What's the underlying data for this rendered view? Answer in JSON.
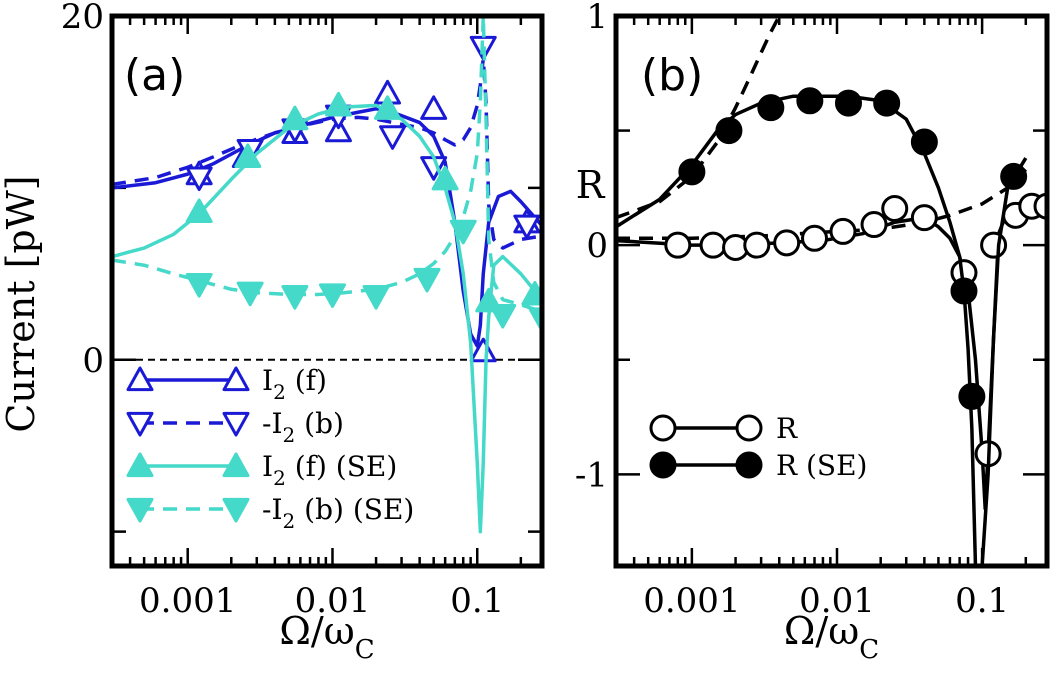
{
  "colors": {
    "blue": "#1a1ad6",
    "cyan": "#44d9c9",
    "black": "#000000"
  },
  "chart_data": [
    {
      "type": "line",
      "panel_label": "(a)",
      "xlabel": "Ω/ω",
      "xlabel_sub": "C",
      "ylabel": "Current [pW]",
      "xscale": "log",
      "xlim": [
        0.0003,
        0.28
      ],
      "ylim": [
        -12,
        20
      ],
      "x_ticks": [
        0.001,
        0.01,
        0.1
      ],
      "x_tick_labels": [
        "0.001",
        "0.01",
        "0.1"
      ],
      "y_ticks": [
        0,
        20
      ],
      "y_tick_labels": [
        "0",
        "20"
      ],
      "reference_line": 0,
      "legend_position": "bottom-left",
      "series": [
        {
          "name": "I₂ (f)",
          "color": "blue",
          "dash": "solid",
          "marker": "triangle-up",
          "fill": false,
          "line_x": [
            0.0003,
            0.0006,
            0.001,
            0.0015,
            0.0025,
            0.004,
            0.006,
            0.01,
            0.015,
            0.02,
            0.024,
            0.03,
            0.04,
            0.05,
            0.06,
            0.07,
            0.08,
            0.09,
            0.1,
            0.105,
            0.11,
            0.12,
            0.14,
            0.17,
            0.2,
            0.28
          ],
          "line_y": [
            10,
            10.3,
            10.8,
            11.4,
            12.4,
            13.2,
            13.6,
            14.1,
            14.4,
            14.6,
            14.5,
            14.2,
            13.8,
            13,
            11.5,
            8,
            4,
            1.5,
            0.8,
            2,
            5,
            8,
            9.5,
            9.8,
            9.2,
            7.8
          ],
          "marker_x": [
            0.0012,
            0.0025,
            0.0055,
            0.011,
            0.024,
            0.05,
            0.11,
            0.22
          ],
          "marker_y": [
            10.8,
            11.8,
            13.2,
            13.3,
            15.5,
            14.6,
            0.5,
            8
          ]
        },
        {
          "name": "-I₂ (b)",
          "color": "blue",
          "dash": "dashed",
          "marker": "triangle-down",
          "fill": false,
          "line_x": [
            0.0003,
            0.0006,
            0.001,
            0.0015,
            0.0025,
            0.004,
            0.006,
            0.01,
            0.015,
            0.02,
            0.03,
            0.04,
            0.05,
            0.06,
            0.07,
            0.08,
            0.09,
            0.1,
            0.105,
            0.11,
            0.115,
            0.12,
            0.13,
            0.15,
            0.2,
            0.28
          ],
          "line_y": [
            10.2,
            10.6,
            11.2,
            11.8,
            12.6,
            13.2,
            13.6,
            14,
            14.1,
            14,
            13.7,
            13.5,
            13.2,
            12.8,
            12.5,
            12.8,
            13.5,
            14.8,
            16,
            17.5,
            15,
            9,
            7,
            6.5,
            7,
            7.2
          ],
          "marker_x": [
            0.0012,
            0.0027,
            0.0055,
            0.011,
            0.026,
            0.05,
            0.11,
            0.22
          ],
          "marker_y": [
            10.6,
            12.2,
            13.4,
            14.2,
            13,
            11.2,
            18.2,
            7.8
          ]
        },
        {
          "name": "I₂ (f) (SE)",
          "color": "cyan",
          "dash": "solid",
          "marker": "triangle-up",
          "fill": true,
          "line_x": [
            0.0003,
            0.0005,
            0.0008,
            0.0012,
            0.002,
            0.003,
            0.005,
            0.008,
            0.012,
            0.02,
            0.03,
            0.04,
            0.05,
            0.06,
            0.07,
            0.08,
            0.09,
            0.1,
            0.105,
            0.11,
            0.115,
            0.12,
            0.13,
            0.15,
            0.2,
            0.28
          ],
          "line_y": [
            6,
            6.5,
            7.3,
            8.5,
            10.5,
            12,
            13.5,
            14.3,
            14.7,
            14.8,
            14,
            13,
            11.8,
            10,
            8,
            5,
            1,
            -6,
            -10,
            -6,
            0,
            2.5,
            5.5,
            6,
            5,
            3.5
          ],
          "marker_x": [
            0.0012,
            0.0026,
            0.0055,
            0.011,
            0.024,
            0.06,
            0.12,
            0.25
          ],
          "marker_y": [
            8.6,
            11.8,
            14,
            14.8,
            14.6,
            10.5,
            3.4,
            3.8
          ]
        },
        {
          "name": "-I₂ (b) (SE)",
          "color": "cyan",
          "dash": "dashed",
          "marker": "triangle-down",
          "fill": true,
          "line_x": [
            0.0003,
            0.0005,
            0.0008,
            0.0012,
            0.002,
            0.003,
            0.005,
            0.008,
            0.012,
            0.02,
            0.03,
            0.04,
            0.05,
            0.06,
            0.07,
            0.08,
            0.09,
            0.1,
            0.105,
            0.11,
            0.115,
            0.12,
            0.13,
            0.15,
            0.2,
            0.28
          ],
          "line_y": [
            5.8,
            5.5,
            5,
            4.6,
            4.1,
            3.9,
            3.8,
            3.8,
            3.9,
            4.1,
            4.5,
            5,
            5.6,
            6.3,
            7.2,
            8.3,
            9.8,
            12,
            15,
            20,
            14,
            7,
            4.5,
            3.5,
            3.2,
            2.8
          ],
          "marker_x": [
            0.0012,
            0.0027,
            0.0055,
            0.01,
            0.02,
            0.045,
            0.08,
            0.15,
            0.28
          ],
          "marker_y": [
            4.4,
            3.9,
            3.7,
            3.8,
            3.7,
            4.7,
            7.5,
            2.6,
            2.4
          ]
        }
      ]
    },
    {
      "type": "line",
      "panel_label": "(b)",
      "xlabel": "Ω/ω",
      "xlabel_sub": "C",
      "ylabel": "R",
      "xscale": "log",
      "xlim": [
        0.0003,
        0.28
      ],
      "ylim": [
        -1.4,
        1
      ],
      "x_ticks": [
        0.001,
        0.01,
        0.1
      ],
      "x_tick_labels": [
        "0.001",
        "0.01",
        "0.1"
      ],
      "y_ticks": [
        -1,
        0,
        1
      ],
      "y_tick_labels": [
        "-1",
        "0",
        "1"
      ],
      "legend_position": "bottom-left",
      "series": [
        {
          "name": "",
          "color": "black",
          "dash": "dashed",
          "marker": "none",
          "fill": false,
          "line_x": [
            0.0003,
            0.0006,
            0.001,
            0.0015,
            0.002,
            0.0025,
            0.003,
            0.0035,
            0.004
          ],
          "line_y": [
            0.12,
            0.19,
            0.3,
            0.45,
            0.6,
            0.73,
            0.84,
            0.93,
            1.0
          ]
        },
        {
          "name": "",
          "color": "black",
          "dash": "dashed",
          "marker": "none",
          "fill": false,
          "line_x": [
            0.0003,
            0.001,
            0.003,
            0.01,
            0.02,
            0.04,
            0.06,
            0.1,
            0.15,
            0.2
          ],
          "line_y": [
            0.03,
            0.03,
            0.04,
            0.06,
            0.07,
            0.1,
            0.13,
            0.18,
            0.25,
            0.33
          ]
        },
        {
          "name": "R",
          "color": "black",
          "dash": "solid",
          "marker": "circle",
          "fill": false,
          "line_x": [
            0.0003,
            0.001,
            0.002,
            0.004,
            0.008,
            0.015,
            0.025,
            0.04,
            0.05,
            0.06,
            0.07,
            0.08,
            0.09,
            0.1,
            0.105,
            0.11,
            0.12,
            0.13,
            0.15,
            0.2,
            0.28
          ],
          "line_y": [
            0.02,
            0.0,
            0.0,
            0.01,
            0.02,
            0.05,
            0.1,
            0.12,
            0.08,
            0.03,
            -0.05,
            -0.2,
            -0.5,
            -0.9,
            -1.15,
            -0.9,
            -0.4,
            0.05,
            0.15,
            0.2,
            0.2
          ],
          "marker_x": [
            0.0008,
            0.0014,
            0.002,
            0.0028,
            0.0045,
            0.007,
            0.011,
            0.018,
            0.025,
            0.04,
            0.075,
            0.11,
            0.12,
            0.17,
            0.22,
            0.28
          ],
          "marker_y": [
            0.0,
            0.0,
            -0.01,
            0.0,
            0.01,
            0.03,
            0.06,
            0.09,
            0.16,
            0.12,
            -0.12,
            -0.91,
            0.0,
            0.13,
            0.17,
            0.17
          ]
        },
        {
          "name": "R (SE)",
          "color": "black",
          "dash": "solid",
          "marker": "circle",
          "fill": true,
          "line_x": [
            0.0003,
            0.0006,
            0.001,
            0.0015,
            0.002,
            0.003,
            0.005,
            0.008,
            0.012,
            0.02,
            0.03,
            0.04,
            0.05,
            0.06,
            0.07,
            0.075,
            0.08,
            0.085,
            0.09,
            0.1,
            0.11,
            0.12,
            0.13,
            0.15,
            0.2
          ],
          "line_y": [
            0.08,
            0.2,
            0.35,
            0.5,
            0.57,
            0.62,
            0.65,
            0.65,
            0.65,
            0.63,
            0.55,
            0.4,
            0.25,
            0.1,
            -0.05,
            -0.2,
            -0.45,
            -0.8,
            -1.4,
            -1.4,
            -1.0,
            -0.4,
            0.0,
            0.25,
            0.38
          ],
          "marker_x": [
            0.001,
            0.0018,
            0.0035,
            0.0065,
            0.012,
            0.022,
            0.04,
            0.075,
            0.085,
            0.165
          ],
          "marker_y": [
            0.32,
            0.5,
            0.6,
            0.63,
            0.62,
            0.62,
            0.45,
            -0.2,
            -0.66,
            0.3
          ]
        }
      ]
    }
  ]
}
